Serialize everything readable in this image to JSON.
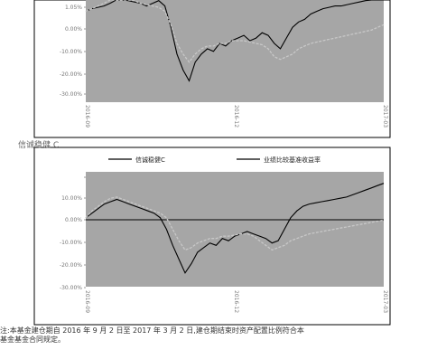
{
  "section_label": "信诚稳健 C",
  "note_line1": "注:本基金建仓期自 2016 年 9 月 2 日至 2017 年 3 月 2 日,建仓期结束时资产配置比例符合本",
  "note_line2": "基金基金合同规定。",
  "chart_data": [
    {
      "type": "line",
      "title": "",
      "y_ticks": [
        "",
        "1.05%",
        "0.00%",
        "-10.00%",
        "-20.00%",
        "-30.00%"
      ],
      "x_ticks": [
        "2016-09",
        "2016-12",
        "2017-03"
      ],
      "series": [
        {
          "values": [
            0.04,
            0.05,
            0.055,
            0.06,
            0.07,
            0.085,
            0.09,
            0.08,
            0.075,
            0.07,
            0.06,
            0.07,
            0.08,
            0.06,
            -0.02,
            -0.12,
            -0.18,
            -0.22,
            -0.15,
            -0.12,
            -0.1,
            -0.11,
            -0.08,
            -0.09,
            -0.07,
            -0.06,
            -0.05,
            -0.07,
            -0.06,
            -0.04,
            -0.05,
            -0.08,
            -0.1,
            -0.06,
            -0.02,
            0.0,
            0.01,
            0.03,
            0.04,
            0.05,
            0.055,
            0.06,
            0.06,
            0.065,
            0.07,
            0.075,
            0.08,
            0.09,
            0.1,
            0.11
          ]
        },
        {
          "values": [
            0.04,
            0.05,
            0.06,
            0.07,
            0.085,
            0.095,
            0.1,
            0.09,
            0.08,
            0.07,
            0.065,
            0.06,
            0.055,
            0.04,
            -0.01,
            -0.08,
            -0.12,
            -0.15,
            -0.12,
            -0.1,
            -0.09,
            -0.09,
            -0.08,
            -0.08,
            -0.07,
            -0.07,
            -0.07,
            -0.075,
            -0.08,
            -0.085,
            -0.1,
            -0.13,
            -0.14,
            -0.13,
            -0.12,
            -0.1,
            -0.09,
            -0.08,
            -0.075,
            -0.07,
            -0.065,
            -0.06,
            -0.055,
            -0.05,
            -0.045,
            -0.04,
            -0.035,
            -0.03,
            -0.02,
            -0.01
          ]
        }
      ]
    },
    {
      "type": "line",
      "title": "",
      "legend": [
        "信诚稳健C",
        "业绩比较基准收益率"
      ],
      "y_ticks": [
        "",
        "10.00%",
        "0.00%",
        "-10.00%",
        "-20.00%",
        "-30.00%"
      ],
      "x_ticks": [
        "2016-09",
        "2016-12",
        "2017-03"
      ],
      "series": [
        {
          "values": [
            0.0,
            0.02,
            0.04,
            0.06,
            0.07,
            0.08,
            0.07,
            0.06,
            0.05,
            0.04,
            0.03,
            0.02,
            0.0,
            -0.05,
            -0.12,
            -0.18,
            -0.24,
            -0.2,
            -0.15,
            -0.13,
            -0.11,
            -0.12,
            -0.09,
            -0.1,
            -0.08,
            -0.07,
            -0.06,
            -0.07,
            -0.08,
            -0.09,
            -0.11,
            -0.1,
            -0.05,
            0.0,
            0.03,
            0.05,
            0.06,
            0.065,
            0.07,
            0.075,
            0.08,
            0.085,
            0.09,
            0.1,
            0.11,
            0.12,
            0.13,
            0.14,
            0.15
          ]
        },
        {
          "values": [
            0.0,
            0.03,
            0.05,
            0.07,
            0.085,
            0.09,
            0.08,
            0.07,
            0.06,
            0.05,
            0.04,
            0.03,
            0.02,
            0.0,
            -0.05,
            -0.1,
            -0.14,
            -0.13,
            -0.11,
            -0.1,
            -0.09,
            -0.09,
            -0.08,
            -0.08,
            -0.075,
            -0.07,
            -0.07,
            -0.08,
            -0.1,
            -0.12,
            -0.14,
            -0.13,
            -0.12,
            -0.1,
            -0.09,
            -0.08,
            -0.07,
            -0.065,
            -0.06,
            -0.055,
            -0.05,
            -0.045,
            -0.04,
            -0.035,
            -0.03,
            -0.025,
            -0.02,
            -0.015,
            -0.01
          ]
        }
      ]
    }
  ]
}
